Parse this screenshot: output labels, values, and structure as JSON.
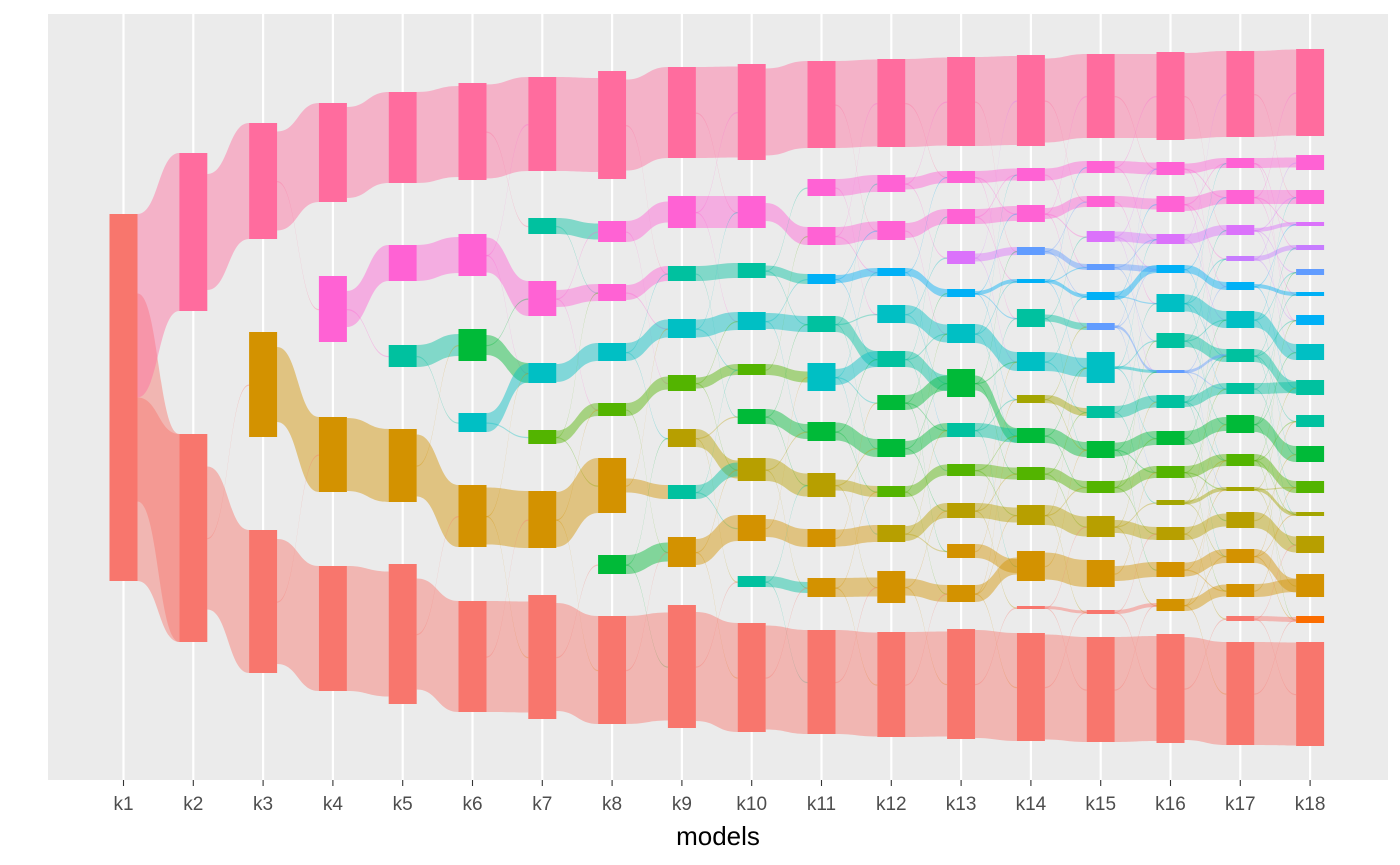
{
  "chart_data": {
    "type": "alluvial",
    "xlabel": "models",
    "ylabel": "",
    "models": [
      "k1",
      "k2",
      "k3",
      "k4",
      "k5",
      "k6",
      "k7",
      "k8",
      "k9",
      "k10",
      "k11",
      "k12",
      "k13",
      "k14",
      "k15",
      "k16",
      "k17",
      "k18"
    ],
    "grid": true,
    "legend": "none",
    "panel_background": "#EBEBEB",
    "clusters": [
      {
        "model": "k1",
        "blocks": [
          {
            "top": 214,
            "bottom": 581,
            "color": "#F8766D"
          }
        ]
      },
      {
        "model": "k2",
        "blocks": [
          {
            "top": 153,
            "bottom": 311,
            "color": "#FF6C9E"
          },
          {
            "top": 434,
            "bottom": 642,
            "color": "#F8766D"
          }
        ]
      },
      {
        "model": "k3",
        "blocks": [
          {
            "top": 123,
            "bottom": 239,
            "color": "#FF6C9E"
          },
          {
            "top": 332,
            "bottom": 437,
            "color": "#D39200"
          },
          {
            "top": 530,
            "bottom": 673,
            "color": "#F8766D"
          }
        ]
      },
      {
        "model": "k4",
        "blocks": [
          {
            "top": 103,
            "bottom": 202,
            "color": "#FF6C9E"
          },
          {
            "top": 276,
            "bottom": 342,
            "color": "#FF62D4"
          },
          {
            "top": 417,
            "bottom": 492,
            "color": "#D39200"
          },
          {
            "top": 566,
            "bottom": 691,
            "color": "#F8766D"
          }
        ]
      },
      {
        "model": "k5",
        "blocks": [
          {
            "top": 92,
            "bottom": 183,
            "color": "#FF6C9E"
          },
          {
            "top": 245,
            "bottom": 281,
            "color": "#FF62D4"
          },
          {
            "top": 345,
            "bottom": 367,
            "color": "#00C19F"
          },
          {
            "top": 429,
            "bottom": 502,
            "color": "#D39200"
          },
          {
            "top": 564,
            "bottom": 704,
            "color": "#F8766D"
          }
        ]
      },
      {
        "model": "k6",
        "blocks": [
          {
            "top": 83,
            "bottom": 180,
            "color": "#FF6C9E"
          },
          {
            "top": 234,
            "bottom": 276,
            "color": "#FF62D4"
          },
          {
            "top": 329,
            "bottom": 361,
            "color": "#00BA38"
          },
          {
            "top": 413,
            "bottom": 432,
            "color": "#00BFC4"
          },
          {
            "top": 485,
            "bottom": 547,
            "color": "#D39200"
          },
          {
            "top": 601,
            "bottom": 712,
            "color": "#F8766D"
          }
        ]
      },
      {
        "model": "k7",
        "blocks": [
          {
            "top": 77,
            "bottom": 171,
            "color": "#FF6C9E"
          },
          {
            "top": 218,
            "bottom": 234,
            "color": "#00C19F"
          },
          {
            "top": 281,
            "bottom": 316,
            "color": "#FF62D4"
          },
          {
            "top": 363,
            "bottom": 383,
            "color": "#00BFC4"
          },
          {
            "top": 430,
            "bottom": 444,
            "color": "#53B400"
          },
          {
            "top": 491,
            "bottom": 548,
            "color": "#D39200"
          },
          {
            "top": 595,
            "bottom": 719,
            "color": "#F8766D"
          }
        ]
      },
      {
        "model": "k8",
        "blocks": [
          {
            "top": 71,
            "bottom": 179,
            "color": "#FF6C9E"
          },
          {
            "top": 221,
            "bottom": 242,
            "color": "#FF62D4"
          },
          {
            "top": 284,
            "bottom": 301,
            "color": "#FF62D4"
          },
          {
            "top": 343,
            "bottom": 361,
            "color": "#00BFC4"
          },
          {
            "top": 403,
            "bottom": 416,
            "color": "#53B400"
          },
          {
            "top": 458,
            "bottom": 513,
            "color": "#D39200"
          },
          {
            "top": 555,
            "bottom": 574,
            "color": "#00BA38"
          },
          {
            "top": 616,
            "bottom": 724,
            "color": "#F8766D"
          }
        ]
      },
      {
        "model": "k9",
        "blocks": [
          {
            "top": 67,
            "bottom": 158,
            "color": "#FF6C9E"
          },
          {
            "top": 196,
            "bottom": 228,
            "color": "#FF62D4"
          },
          {
            "top": 266,
            "bottom": 281,
            "color": "#00C19F"
          },
          {
            "top": 319,
            "bottom": 338,
            "color": "#00BFC4"
          },
          {
            "top": 375,
            "bottom": 391,
            "color": "#53B400"
          },
          {
            "top": 429,
            "bottom": 447,
            "color": "#B79F00"
          },
          {
            "top": 485,
            "bottom": 499,
            "color": "#00C19F"
          },
          {
            "top": 537,
            "bottom": 567,
            "color": "#D39200"
          },
          {
            "top": 605,
            "bottom": 728,
            "color": "#F8766D"
          }
        ]
      },
      {
        "model": "k10",
        "blocks": [
          {
            "top": 64,
            "bottom": 160,
            "color": "#FF6C9E"
          },
          {
            "top": 196,
            "bottom": 228,
            "color": "#FF62D4"
          },
          {
            "top": 263,
            "bottom": 278,
            "color": "#00C19F"
          },
          {
            "top": 312,
            "bottom": 330,
            "color": "#00BFC4"
          },
          {
            "top": 364,
            "bottom": 375,
            "color": "#53B400"
          },
          {
            "top": 409,
            "bottom": 424,
            "color": "#00BA38"
          },
          {
            "top": 458,
            "bottom": 481,
            "color": "#B79F00"
          },
          {
            "top": 515,
            "bottom": 541,
            "color": "#D39200"
          },
          {
            "top": 576,
            "bottom": 587,
            "color": "#00C19F"
          },
          {
            "top": 623,
            "bottom": 732,
            "color": "#F8766D"
          }
        ]
      },
      {
        "model": "k11",
        "blocks": [
          {
            "top": 61,
            "bottom": 148,
            "color": "#FF6C9E"
          },
          {
            "top": 179,
            "bottom": 196,
            "color": "#FF62D4"
          },
          {
            "top": 227,
            "bottom": 245,
            "color": "#FF62D4"
          },
          {
            "top": 274,
            "bottom": 284,
            "color": "#00B0F6"
          },
          {
            "top": 316,
            "bottom": 332,
            "color": "#00C19F"
          },
          {
            "top": 363,
            "bottom": 391,
            "color": "#00BFC4"
          },
          {
            "top": 422,
            "bottom": 441,
            "color": "#00BA38"
          },
          {
            "top": 473,
            "bottom": 497,
            "color": "#B79F00"
          },
          {
            "top": 529,
            "bottom": 547,
            "color": "#D39200"
          },
          {
            "top": 578,
            "bottom": 597,
            "color": "#D39200"
          },
          {
            "top": 630,
            "bottom": 734,
            "color": "#F8766D"
          }
        ]
      },
      {
        "model": "k12",
        "blocks": [
          {
            "top": 59,
            "bottom": 147,
            "color": "#FF6C9E"
          },
          {
            "top": 175,
            "bottom": 192,
            "color": "#FF62D4"
          },
          {
            "top": 221,
            "bottom": 240,
            "color": "#FF62D4"
          },
          {
            "top": 268,
            "bottom": 276,
            "color": "#00B0F6"
          },
          {
            "top": 305,
            "bottom": 323,
            "color": "#00BFC4"
          },
          {
            "top": 351,
            "bottom": 367,
            "color": "#00C19F"
          },
          {
            "top": 395,
            "bottom": 410,
            "color": "#00BA38"
          },
          {
            "top": 439,
            "bottom": 457,
            "color": "#00BA38"
          },
          {
            "top": 486,
            "bottom": 497,
            "color": "#53B400"
          },
          {
            "top": 525,
            "bottom": 542,
            "color": "#B79F00"
          },
          {
            "top": 571,
            "bottom": 603,
            "color": "#D39200"
          },
          {
            "top": 632,
            "bottom": 737,
            "color": "#F8766D"
          }
        ]
      },
      {
        "model": "k13",
        "blocks": [
          {
            "top": 57,
            "bottom": 146,
            "color": "#FF6C9E"
          },
          {
            "top": 171,
            "bottom": 183,
            "color": "#FF62D4"
          },
          {
            "top": 209,
            "bottom": 224,
            "color": "#FF62D4"
          },
          {
            "top": 251,
            "bottom": 264,
            "color": "#DB72FB"
          },
          {
            "top": 289,
            "bottom": 297,
            "color": "#00B0F6"
          },
          {
            "top": 324,
            "bottom": 343,
            "color": "#00BFC4"
          },
          {
            "top": 369,
            "bottom": 397,
            "color": "#00BA38"
          },
          {
            "top": 423,
            "bottom": 437,
            "color": "#00C19F"
          },
          {
            "top": 464,
            "bottom": 476,
            "color": "#53B400"
          },
          {
            "top": 503,
            "bottom": 518,
            "color": "#B79F00"
          },
          {
            "top": 544,
            "bottom": 558,
            "color": "#D39200"
          },
          {
            "top": 585,
            "bottom": 602,
            "color": "#D39200"
          },
          {
            "top": 629,
            "bottom": 739,
            "color": "#F8766D"
          }
        ]
      },
      {
        "model": "k14",
        "blocks": [
          {
            "top": 55,
            "bottom": 146,
            "color": "#FF6C9E"
          },
          {
            "top": 168,
            "bottom": 181,
            "color": "#FF62D4"
          },
          {
            "top": 205,
            "bottom": 222,
            "color": "#FF62D4"
          },
          {
            "top": 247,
            "bottom": 255,
            "color": "#619CFF"
          },
          {
            "top": 279,
            "bottom": 283,
            "color": "#00B0F6"
          },
          {
            "top": 309,
            "bottom": 327,
            "color": "#00C19F"
          },
          {
            "top": 352,
            "bottom": 371,
            "color": "#00BFC4"
          },
          {
            "top": 428,
            "bottom": 443,
            "color": "#00BA38"
          },
          {
            "top": 395,
            "bottom": 403,
            "color": "#A3A500"
          },
          {
            "top": 467,
            "bottom": 480,
            "color": "#53B400"
          },
          {
            "top": 505,
            "bottom": 525,
            "color": "#B79F00"
          },
          {
            "top": 551,
            "bottom": 581,
            "color": "#D39200"
          },
          {
            "top": 606,
            "bottom": 609,
            "color": "#F8766D"
          },
          {
            "top": 633,
            "bottom": 741,
            "color": "#F8766D"
          }
        ]
      },
      {
        "model": "k15",
        "blocks": [
          {
            "top": 54,
            "bottom": 138,
            "color": "#FF6C9E"
          },
          {
            "top": 161,
            "bottom": 173,
            "color": "#FF62D4"
          },
          {
            "top": 196,
            "bottom": 207,
            "color": "#FF62D4"
          },
          {
            "top": 231,
            "bottom": 242,
            "color": "#DB72FB"
          },
          {
            "top": 264,
            "bottom": 270,
            "color": "#619CFF"
          },
          {
            "top": 292,
            "bottom": 300,
            "color": "#00B0F6"
          },
          {
            "top": 323,
            "bottom": 330,
            "color": "#619CFF"
          },
          {
            "top": 352,
            "bottom": 383,
            "color": "#00BFC4"
          },
          {
            "top": 406,
            "bottom": 418,
            "color": "#00C19F"
          },
          {
            "top": 441,
            "bottom": 458,
            "color": "#00BA38"
          },
          {
            "top": 481,
            "bottom": 493,
            "color": "#53B400"
          },
          {
            "top": 516,
            "bottom": 537,
            "color": "#B79F00"
          },
          {
            "top": 560,
            "bottom": 587,
            "color": "#D39200"
          },
          {
            "top": 610,
            "bottom": 614,
            "color": "#F8766D"
          },
          {
            "top": 637,
            "bottom": 742,
            "color": "#F8766D"
          }
        ]
      },
      {
        "model": "k16",
        "blocks": [
          {
            "top": 52,
            "bottom": 140,
            "color": "#FF6C9E"
          },
          {
            "top": 162,
            "bottom": 175,
            "color": "#FF62D4"
          },
          {
            "top": 196,
            "bottom": 212,
            "color": "#FF62D4"
          },
          {
            "top": 234,
            "bottom": 244,
            "color": "#DB72FB"
          },
          {
            "top": 265,
            "bottom": 273,
            "color": "#00B0F6"
          },
          {
            "top": 294,
            "bottom": 312,
            "color": "#00BFC4"
          },
          {
            "top": 333,
            "bottom": 348,
            "color": "#00C19F"
          },
          {
            "top": 370,
            "bottom": 373,
            "color": "#619CFF"
          },
          {
            "top": 395,
            "bottom": 408,
            "color": "#00C19F"
          },
          {
            "top": 431,
            "bottom": 445,
            "color": "#00BA38"
          },
          {
            "top": 466,
            "bottom": 478,
            "color": "#53B400"
          },
          {
            "top": 500,
            "bottom": 505,
            "color": "#A3A500"
          },
          {
            "top": 527,
            "bottom": 540,
            "color": "#B79F00"
          },
          {
            "top": 562,
            "bottom": 577,
            "color": "#D39200"
          },
          {
            "top": 599,
            "bottom": 611,
            "color": "#D39200"
          },
          {
            "top": 634,
            "bottom": 743,
            "color": "#F8766D"
          }
        ]
      },
      {
        "model": "k17",
        "blocks": [
          {
            "top": 51,
            "bottom": 137,
            "color": "#FF6C9E"
          },
          {
            "top": 158,
            "bottom": 168,
            "color": "#FF62D4"
          },
          {
            "top": 190,
            "bottom": 204,
            "color": "#FF62D4"
          },
          {
            "top": 225,
            "bottom": 235,
            "color": "#DB72FB"
          },
          {
            "top": 256,
            "bottom": 261,
            "color": "#C77CFF"
          },
          {
            "top": 282,
            "bottom": 290,
            "color": "#00B0F6"
          },
          {
            "top": 311,
            "bottom": 328,
            "color": "#00BFC4"
          },
          {
            "top": 349,
            "bottom": 362,
            "color": "#00C19F"
          },
          {
            "top": 383,
            "bottom": 394,
            "color": "#00C19F"
          },
          {
            "top": 415,
            "bottom": 433,
            "color": "#00BA38"
          },
          {
            "top": 454,
            "bottom": 466,
            "color": "#53B400"
          },
          {
            "top": 487,
            "bottom": 491,
            "color": "#A3A500"
          },
          {
            "top": 512,
            "bottom": 528,
            "color": "#B79F00"
          },
          {
            "top": 549,
            "bottom": 563,
            "color": "#D39200"
          },
          {
            "top": 584,
            "bottom": 597,
            "color": "#D39200"
          },
          {
            "top": 616,
            "bottom": 621,
            "color": "#F8766D"
          },
          {
            "top": 642,
            "bottom": 745,
            "color": "#F8766D"
          }
        ]
      },
      {
        "model": "k18",
        "blocks": [
          {
            "top": 49,
            "bottom": 136,
            "color": "#FF6C9E"
          },
          {
            "top": 155,
            "bottom": 170,
            "color": "#FF62D4"
          },
          {
            "top": 190,
            "bottom": 204,
            "color": "#FF62D4"
          },
          {
            "top": 222,
            "bottom": 226,
            "color": "#DB72FB"
          },
          {
            "top": 245,
            "bottom": 250,
            "color": "#C77CFF"
          },
          {
            "top": 269,
            "bottom": 275,
            "color": "#619CFF"
          },
          {
            "top": 292,
            "bottom": 296,
            "color": "#00B0F6"
          },
          {
            "top": 315,
            "bottom": 325,
            "color": "#00B0F6"
          },
          {
            "top": 344,
            "bottom": 360,
            "color": "#00BFC4"
          },
          {
            "top": 380,
            "bottom": 395,
            "color": "#00C19F"
          },
          {
            "top": 415,
            "bottom": 427,
            "color": "#00C19F"
          },
          {
            "top": 446,
            "bottom": 462,
            "color": "#00BA38"
          },
          {
            "top": 481,
            "bottom": 493,
            "color": "#53B400"
          },
          {
            "top": 512,
            "bottom": 516,
            "color": "#A3A500"
          },
          {
            "top": 536,
            "bottom": 553,
            "color": "#B79F00"
          },
          {
            "top": 574,
            "bottom": 597,
            "color": "#D39200"
          },
          {
            "top": 616,
            "bottom": 623,
            "color": "#FB6D00"
          },
          {
            "top": 642,
            "bottom": 746,
            "color": "#F8766D"
          }
        ]
      }
    ]
  }
}
